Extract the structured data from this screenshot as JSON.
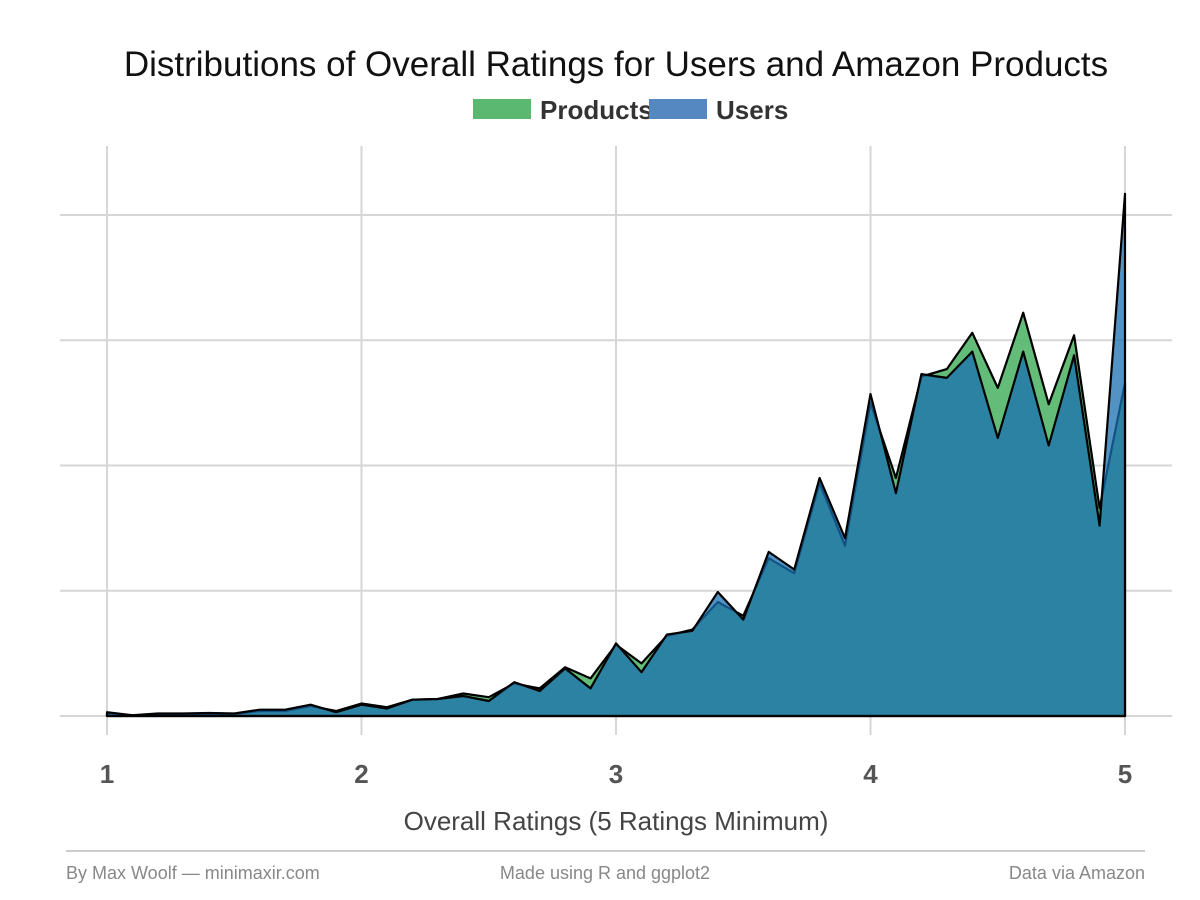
{
  "chart_data": {
    "type": "area",
    "title": "Distributions of Overall Ratings for Users and Amazon Products",
    "xlabel": "Overall Ratings (5 Ratings Minimum)",
    "ylabel": "",
    "xlim": [
      1,
      5
    ],
    "ylim": [
      0,
      0.21
    ],
    "x_ticks": [
      "1",
      "2",
      "3",
      "4",
      "5"
    ],
    "show_y_tick_labels": false,
    "grid": true,
    "legend_position": "top",
    "x": [
      1.0,
      1.1,
      1.2,
      1.3,
      1.4,
      1.5,
      1.6,
      1.7,
      1.8,
      1.9,
      2.0,
      2.1,
      2.2,
      2.3,
      2.4,
      2.5,
      2.6,
      2.7,
      2.8,
      2.9,
      3.0,
      3.1,
      3.2,
      3.3,
      3.4,
      3.5,
      3.6,
      3.7,
      3.8,
      3.9,
      4.0,
      4.1,
      4.2,
      4.3,
      4.4,
      4.5,
      4.6,
      4.7,
      4.8,
      4.9,
      5.0
    ],
    "series": [
      {
        "name": "Products",
        "color": "#5bb870",
        "values": [
          0.001,
          0.0002,
          0.0006,
          0.0006,
          0.001,
          0.0008,
          0.002,
          0.002,
          0.004,
          0.002,
          0.005,
          0.0035,
          0.0065,
          0.0068,
          0.009,
          0.0075,
          0.013,
          0.011,
          0.0195,
          0.015,
          0.0285,
          0.021,
          0.032,
          0.0345,
          0.0455,
          0.04,
          0.063,
          0.057,
          0.093,
          0.068,
          0.125,
          0.095,
          0.1355,
          0.1385,
          0.153,
          0.131,
          0.161,
          0.1245,
          0.152,
          0.083,
          0.133
        ]
      },
      {
        "name": "Users",
        "color": "#3d7fbd",
        "values": [
          0.0015,
          0.0003,
          0.001,
          0.001,
          0.0012,
          0.001,
          0.0025,
          0.0025,
          0.0045,
          0.0015,
          0.0045,
          0.003,
          0.0065,
          0.0068,
          0.008,
          0.006,
          0.0135,
          0.01,
          0.019,
          0.011,
          0.029,
          0.0175,
          0.0325,
          0.034,
          0.0495,
          0.0385,
          0.0655,
          0.0585,
          0.095,
          0.071,
          0.1285,
          0.089,
          0.1365,
          0.135,
          0.1455,
          0.111,
          0.1455,
          0.108,
          0.144,
          0.076,
          0.2085
        ]
      }
    ]
  },
  "footer": {
    "left": "By Max Woolf — minimaxir.com",
    "center": "Made using R and ggplot2",
    "right": "Data via Amazon"
  }
}
